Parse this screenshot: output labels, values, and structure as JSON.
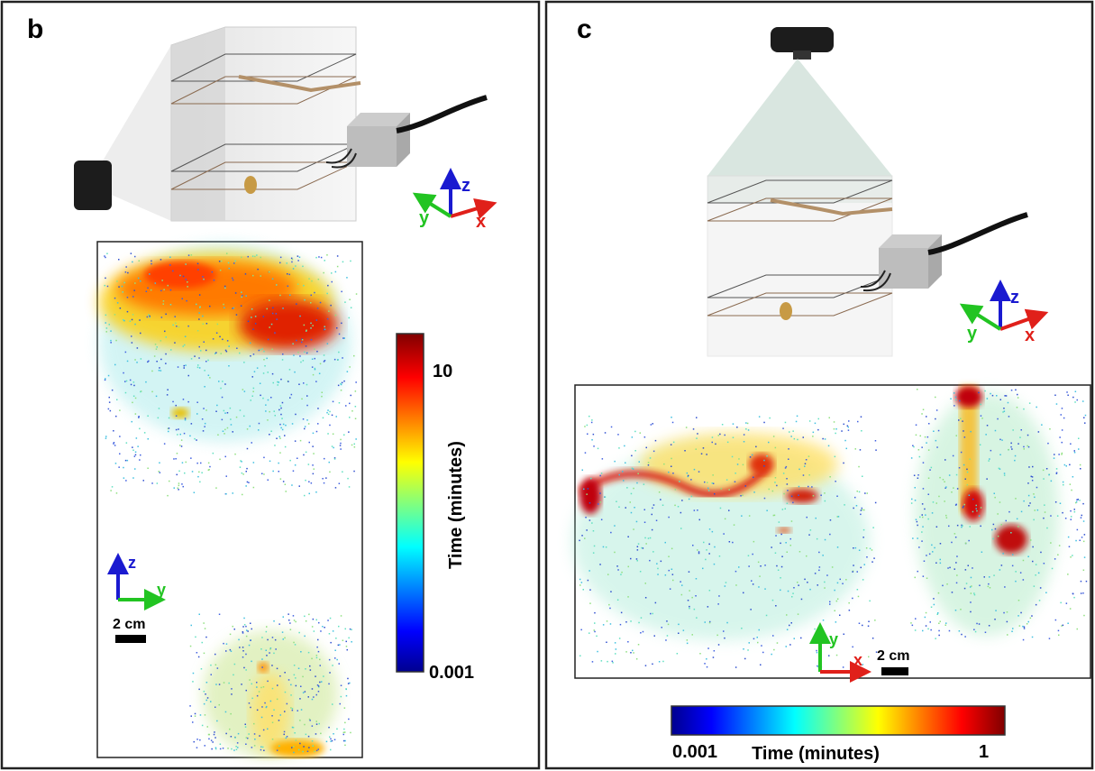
{
  "panels": [
    {
      "label": "b",
      "apparatus_axes": [
        "z",
        "y",
        "x"
      ],
      "map_axes": [
        "z",
        "y"
      ],
      "scale_bar": "2 cm",
      "colorbar": {
        "title": "Time (minutes)",
        "ticks": [
          "10",
          "0.001"
        ]
      }
    },
    {
      "label": "c",
      "apparatus_axes": [
        "z",
        "y",
        "x"
      ],
      "map_axes": [
        "y",
        "x"
      ],
      "scale_bar": "2 cm",
      "colorbar": {
        "title": "Time (minutes)",
        "ticks": [
          "0.001",
          "1"
        ]
      }
    }
  ]
}
